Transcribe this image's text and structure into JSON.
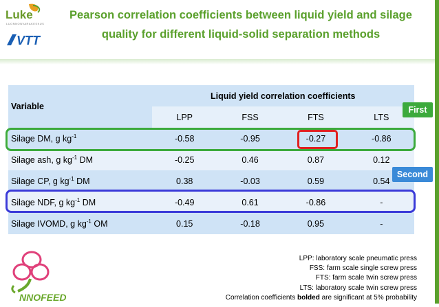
{
  "slide": {
    "title_line1": "Pearson correlation coefficients between liquid yield and silage",
    "title_line2": "quality for different liquid-solid separation methods"
  },
  "logos": {
    "luke": {
      "word": "Luke",
      "sub": "LUONNONVARAKESKUS"
    },
    "vtt": "VTT",
    "innofeed": "NNOFEED"
  },
  "table": {
    "variable_header": "Variable",
    "group_header": "Liquid yield correlation coefficients",
    "columns": [
      "LPP",
      "FSS",
      "FTS",
      "LTS"
    ],
    "rows": [
      {
        "label": "Silage DM, g kg",
        "sup": "-1",
        "suffix": "",
        "values": [
          "-0.58",
          "-0.95",
          "-0.27",
          "-0.86"
        ],
        "bold": [
          true,
          true,
          false,
          true
        ]
      },
      {
        "label": "Silage ash, g kg",
        "sup": "-1",
        "suffix": " DM",
        "values": [
          "-0.25",
          "0.46",
          "0.87",
          "0.12"
        ],
        "bold": [
          false,
          false,
          false,
          false
        ]
      },
      {
        "label": "Silage CP, g kg",
        "sup": "-1",
        "suffix": " DM",
        "values": [
          "0.38",
          "-0.03",
          "0.59",
          "0.54"
        ],
        "bold": [
          false,
          false,
          false,
          false
        ]
      },
      {
        "label": "Silage NDF, g kg",
        "sup": "-1",
        "suffix": " DM",
        "values": [
          "-0.49",
          "0.61",
          "-0.86",
          "-"
        ],
        "bold": [
          false,
          false,
          false,
          false
        ]
      },
      {
        "label": "Silage IVOMD, g kg",
        "sup": "-1",
        "suffix": " OM",
        "values": [
          "0.15",
          "-0.18",
          "0.95",
          "-"
        ],
        "bold": [
          false,
          false,
          true,
          false
        ]
      }
    ]
  },
  "annotations": {
    "first": "First",
    "second": "Second"
  },
  "notes": {
    "lpp": "LPP: laboratory scale pneumatic press",
    "fss": "FSS: farm scale single screw press",
    "fts": "FTS: farm scale twin screw press",
    "lts": "LTS: laboratory scale twin screw press",
    "sig_pre": "Correlation coefficients ",
    "sig_bold": "bolded",
    "sig_post": " are significant at 5% probability"
  },
  "colors": {
    "title": "#5aa02c",
    "highlight_first": "#3caa3c",
    "highlight_second": "#3a3ad8",
    "highlight_cell": "#e02020"
  }
}
